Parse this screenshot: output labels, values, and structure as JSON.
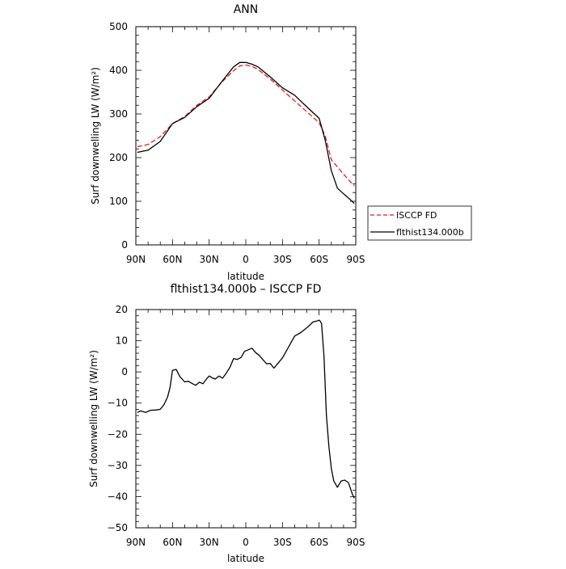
{
  "chart_data": [
    {
      "type": "line",
      "title": "ANN",
      "xlabel": "latitude",
      "ylabel": "Surf downwelling LW (W/m²)",
      "xlim": [
        -90,
        90
      ],
      "ylim": [
        0,
        500
      ],
      "xticks": [
        -90,
        -60,
        -30,
        0,
        30,
        60,
        90
      ],
      "xtick_labels": [
        "90N",
        "60N",
        "30N",
        "0",
        "30S",
        "60S",
        "90S"
      ],
      "yticks": [
        0,
        100,
        200,
        300,
        400,
        500
      ],
      "ytick_labels": [
        "0",
        "100",
        "200",
        "300",
        "400",
        "500"
      ],
      "grid": false,
      "legend": "right",
      "series": [
        {
          "name": "ISCCP FD",
          "color": "#e41a1c",
          "dash": "dashed",
          "x": [
            -88.75,
            -80,
            -70,
            -60,
            -50,
            -40,
            -30,
            -20,
            -10,
            -5,
            0,
            5,
            10,
            20,
            30,
            40,
            50,
            60,
            65,
            70,
            80,
            88.75
          ],
          "y": [
            225,
            230,
            248,
            278,
            294,
            320,
            339,
            372,
            399,
            410,
            412,
            409,
            402,
            380,
            355,
            330,
            305,
            280,
            250,
            195,
            162,
            135
          ]
        },
        {
          "name": "flthist134.000b",
          "color": "#000000",
          "dash": "solid",
          "x": [
            -88.75,
            -80,
            -70,
            -60,
            -50,
            -40,
            -30,
            -20,
            -10,
            -5,
            0,
            5,
            10,
            20,
            30,
            40,
            50,
            60,
            62,
            65,
            70,
            75,
            80,
            85,
            88.75
          ],
          "y": [
            212,
            217,
            237,
            278,
            292,
            317,
            336,
            373,
            408,
            418,
            418,
            414,
            408,
            385,
            360,
            343,
            316,
            290,
            270,
            240,
            170,
            130,
            117,
            105,
            95
          ]
        }
      ]
    },
    {
      "type": "line",
      "title": "flthist134.000b – ISCCP FD",
      "xlabel": "latitude",
      "ylabel": "Surf downwelling LW (W/m²)",
      "xlim": [
        -90,
        90
      ],
      "ylim": [
        -50,
        20
      ],
      "xticks": [
        -90,
        -60,
        -30,
        0,
        30,
        60,
        90
      ],
      "xtick_labels": [
        "90N",
        "60N",
        "30N",
        "0",
        "30S",
        "60S",
        "90S"
      ],
      "yticks": [
        -50,
        -40,
        -30,
        -20,
        -10,
        0,
        10,
        20
      ],
      "ytick_labels": [
        "−50",
        "−40",
        "−30",
        "−20",
        "−10",
        "0",
        "10",
        "20"
      ],
      "grid": false,
      "series": [
        {
          "color": "#000000",
          "dash": "solid",
          "x": [
            -88.75,
            -86,
            -82,
            -78,
            -73,
            -70,
            -67,
            -64,
            -62,
            -60,
            -57,
            -54,
            -50,
            -47,
            -44,
            -41,
            -38,
            -35,
            -32,
            -30,
            -28,
            -25,
            -22,
            -19,
            -16,
            -13,
            -10,
            -7,
            -4,
            -1,
            2,
            5,
            8,
            11,
            14,
            17,
            20,
            23,
            26,
            30,
            35,
            40,
            45,
            50,
            55,
            58,
            60,
            61,
            62,
            64,
            66,
            68,
            70,
            72,
            75,
            78,
            81,
            84,
            87,
            88.75
          ],
          "y": [
            -13,
            -12.5,
            -13,
            -12.3,
            -12.2,
            -12,
            -10.5,
            -8,
            -5,
            0.5,
            0.8,
            -1.5,
            -3.2,
            -3,
            -3.7,
            -4.3,
            -3.3,
            -3.8,
            -2.2,
            -1.3,
            -1.8,
            -2.3,
            -1.3,
            -2,
            -0.4,
            1.5,
            4.3,
            4,
            4.6,
            6.6,
            7.1,
            7.6,
            6.2,
            5.3,
            3.9,
            2.6,
            2.7,
            1.2,
            2.6,
            4.5,
            8,
            11.5,
            12.6,
            14.2,
            16,
            16.3,
            16.6,
            16.2,
            15.5,
            5,
            -14,
            -24,
            -31,
            -35,
            -37,
            -35,
            -34.7,
            -35.5,
            -39,
            -40.5
          ]
        }
      ]
    }
  ],
  "legend": {
    "items": [
      {
        "label": "ISCCP FD",
        "color": "#e41a1c",
        "dash": "dashed"
      },
      {
        "label": "flthist134.000b",
        "color": "#000000",
        "dash": "solid"
      }
    ]
  }
}
